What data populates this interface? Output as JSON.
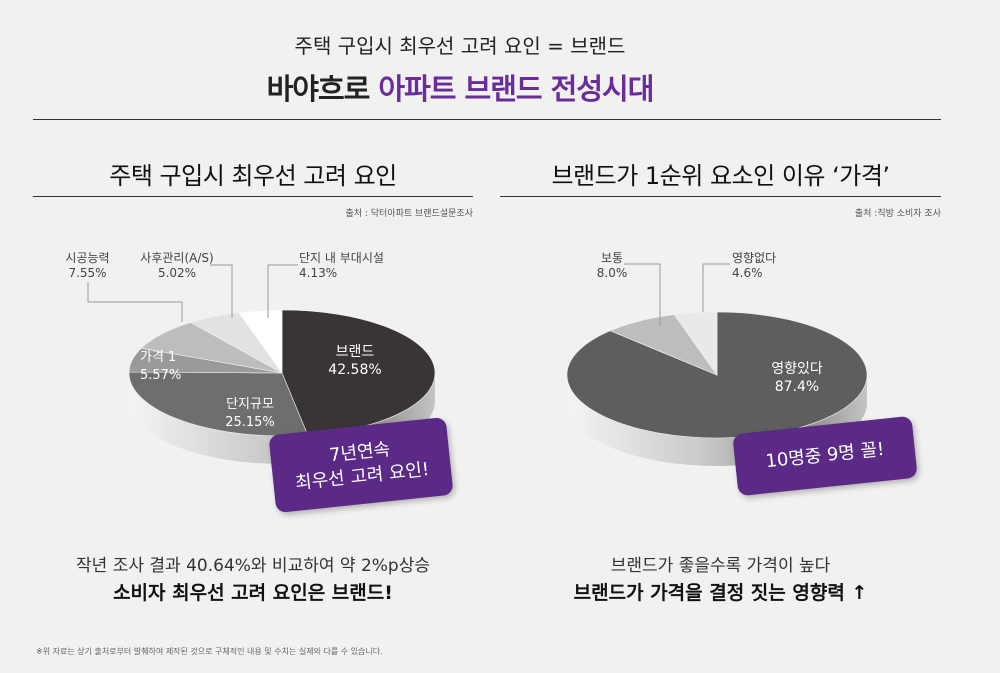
{
  "header": {
    "subtitle": "주택 구입시 최우선 고려 요인 = 브랜드",
    "title_plain": "바야흐로 ",
    "title_accent": "아파트 브랜드 전성시대"
  },
  "colors": {
    "accent": "#5b2a86",
    "dark": "#3a3a3a",
    "mid": "#7a7a7a",
    "light": "#b8b8b8",
    "pale": "#dedede"
  },
  "left_panel": {
    "title": "주택 구입시 최우선 고려 요인",
    "source": "출처 : 닥터아파트 브랜드설문조사",
    "badge": [
      "7년연속",
      "최우선 고려 요인!"
    ],
    "note_line1": "작년 조사 결과 40.64%와 비교하여 약 2%p상승",
    "note_line2": "소비자 최우선 고려 요인은 브랜드!"
  },
  "right_panel": {
    "title": "브랜드가 1순위 요소인 이유 ‘가격’",
    "source": "출처 :직방 소비자 조사",
    "badge": "10명중 9명 꼴!",
    "note_line1": "브랜드가 좋을수록 가격이 높다",
    "note_line2": "브랜드가 가격을 결정 짓는 영향력 ↑"
  },
  "footer": "※위 자료는 상기 출처로부터 발췌하여 제작된 것으로 구체적인 내용 및 수치는 실제와 다를 수 있습니다.",
  "chart_data": [
    {
      "type": "pie",
      "title": "주택 구입시 최우선 고려 요인",
      "slices": [
        {
          "label": "브랜드",
          "value": 42.58,
          "display": "42.58%"
        },
        {
          "label": "단지규모",
          "value": 25.15,
          "display": "25.15%"
        },
        {
          "label": "가격 1",
          "value": 5.57,
          "display": "5.57%"
        },
        {
          "label": "시공능력",
          "value": 7.55,
          "display": "7.55%"
        },
        {
          "label": "사후관리(A/S)",
          "value": 5.02,
          "display": "5.02%"
        },
        {
          "label": "단지 내 부대시설",
          "value": 4.13,
          "display": "4.13%"
        }
      ]
    },
    {
      "type": "pie",
      "title": "브랜드가 1순위 요소인 이유 ‘가격’",
      "slices": [
        {
          "label": "영향있다",
          "value": 87.4,
          "display": "87.4%"
        },
        {
          "label": "보통",
          "value": 8.0,
          "display": "8.0%"
        },
        {
          "label": "영향없다",
          "value": 4.6,
          "display": "4.6%"
        }
      ]
    }
  ]
}
